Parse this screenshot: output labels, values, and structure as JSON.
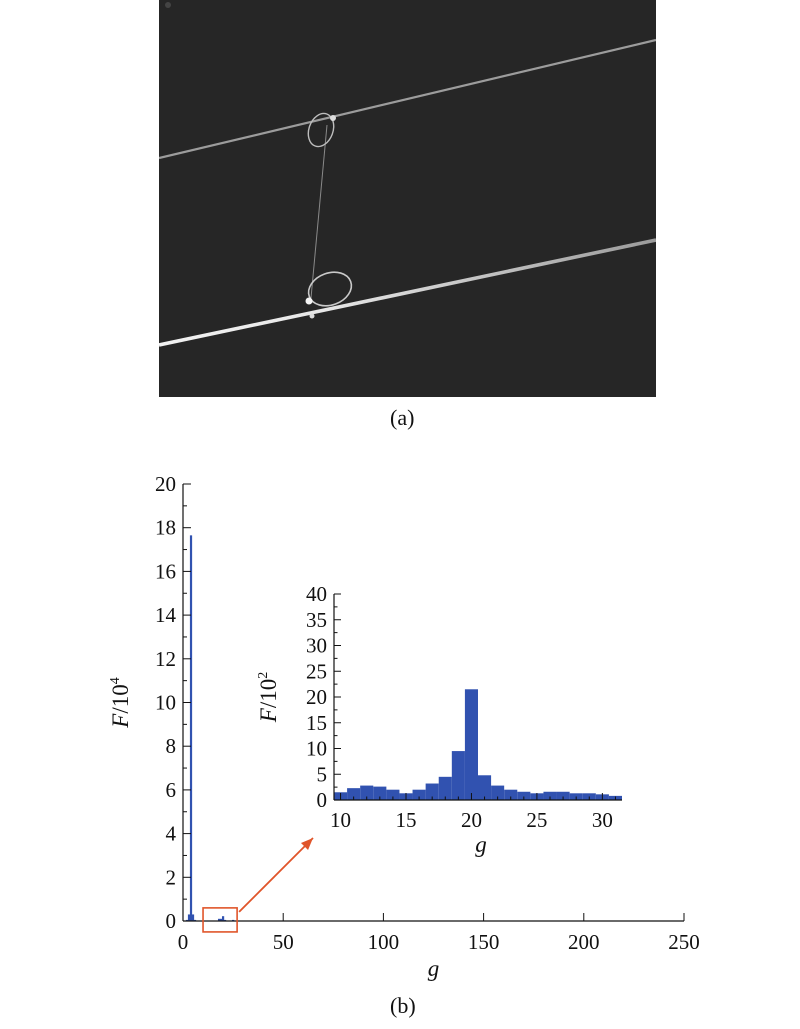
{
  "panel_a": {
    "caption": "(a)"
  },
  "panel_b": {
    "caption": "(b)"
  },
  "colors": {
    "bar": "#3152b0",
    "highlight": "#e0552a",
    "photo_bg": "#262626"
  },
  "chart_data": [
    {
      "type": "bar",
      "title": "",
      "xlabel": "g",
      "ylabel": "F/10⁴",
      "ylabel_main": "F",
      "ylabel_suffix": "/10",
      "ylabel_exp": "4",
      "xlim": [
        0,
        250
      ],
      "ylim": [
        0,
        20
      ],
      "xticks": [
        0,
        50,
        100,
        150,
        200,
        250
      ],
      "yticks": [
        0,
        2,
        4,
        6,
        8,
        10,
        12,
        14,
        16,
        18,
        20
      ],
      "grid": false,
      "x": [
        2,
        3,
        4,
        5,
        6,
        7,
        18,
        19,
        20,
        21,
        25
      ],
      "values": [
        0.05,
        0.3,
        17.65,
        0.3,
        0.05,
        0.02,
        0.1,
        0.1,
        0.22,
        0.05,
        0.05
      ],
      "zoom_box_x": [
        10,
        27
      ],
      "zoom_box_y": [
        -0.5,
        0.6
      ]
    },
    {
      "type": "bar",
      "title": "",
      "xlabel": "g",
      "ylabel": "F/10²",
      "ylabel_main": "F",
      "ylabel_suffix": "/10",
      "ylabel_exp": "2",
      "xlim": [
        9.5,
        31.5
      ],
      "ylim": [
        0,
        40
      ],
      "xticks": [
        10,
        15,
        20,
        25,
        30
      ],
      "yticks": [
        0,
        5,
        10,
        15,
        20,
        25,
        30,
        35,
        40
      ],
      "grid": false,
      "x": [
        10,
        11,
        12,
        13,
        14,
        15,
        16,
        17,
        18,
        19,
        20,
        21,
        22,
        23,
        24,
        25,
        26,
        27,
        28,
        29,
        30,
        31
      ],
      "values": [
        1.5,
        2.3,
        2.8,
        2.6,
        2.0,
        1.3,
        2.0,
        3.2,
        4.5,
        9.5,
        21.5,
        4.8,
        2.8,
        2.0,
        1.6,
        1.3,
        1.6,
        1.6,
        1.3,
        1.3,
        1.1,
        0.8
      ]
    }
  ]
}
